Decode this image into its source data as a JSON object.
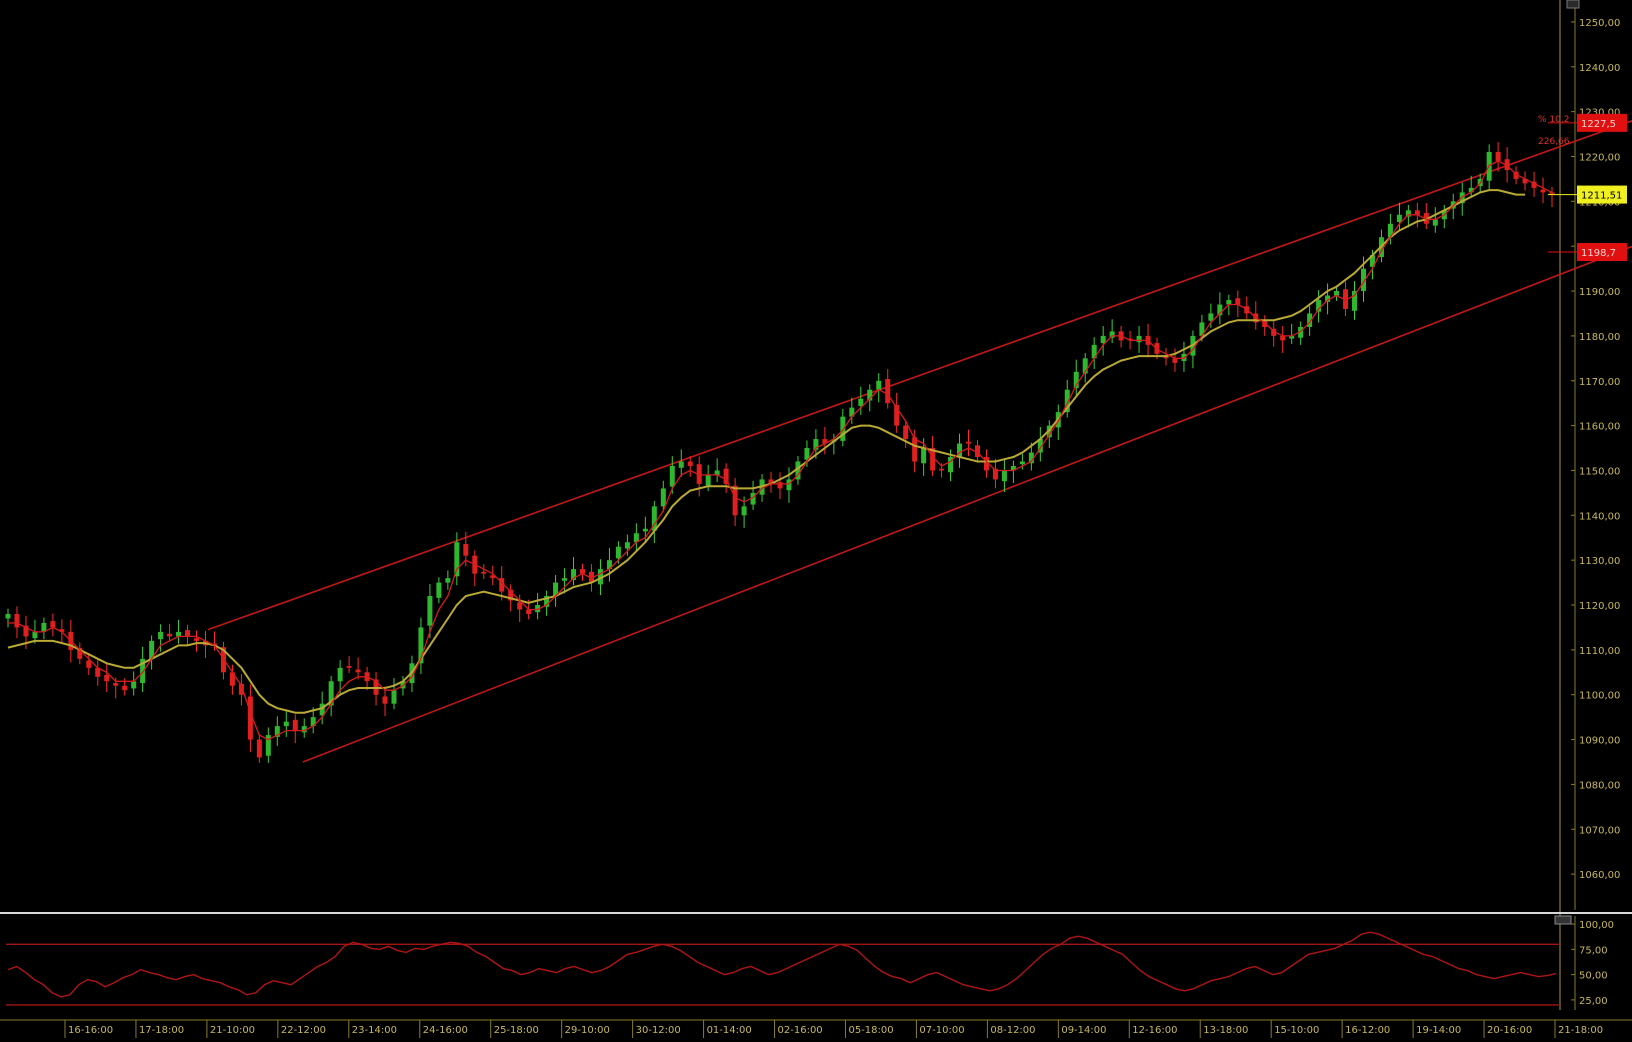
{
  "chart_data": [
    {
      "type": "candlestick",
      "title": "",
      "ylim": [
        1052,
        1254
      ],
      "yticks": [
        {
          "value": 1250,
          "label": "1250,00"
        },
        {
          "value": 1240,
          "label": "1240,00"
        },
        {
          "value": 1230,
          "label": "1230,00"
        },
        {
          "value": 1220,
          "label": "1220,00"
        },
        {
          "value": 1210,
          "label": "1210,00"
        },
        {
          "value": 1200,
          "label": "1200,00"
        },
        {
          "value": 1190,
          "label": "1190,00"
        },
        {
          "value": 1180,
          "label": "1180,00"
        },
        {
          "value": 1170,
          "label": "1170,00"
        },
        {
          "value": 1160,
          "label": "1160,00"
        },
        {
          "value": 1150,
          "label": "1150,00"
        },
        {
          "value": 1140,
          "label": "1140,00"
        },
        {
          "value": 1130,
          "label": "1130,00"
        },
        {
          "value": 1120,
          "label": "1120,00"
        },
        {
          "value": 1110,
          "label": "1110,00"
        },
        {
          "value": 1100,
          "label": "1100,00"
        },
        {
          "value": 1090,
          "label": "1090,00"
        },
        {
          "value": 1080,
          "label": "1080,00"
        },
        {
          "value": 1070,
          "label": "1070,00"
        },
        {
          "value": 1060,
          "label": "1060,00"
        }
      ],
      "price_labels": [
        {
          "value": 1227.5,
          "label": "1227,5",
          "color": "#e01010",
          "text_color": "#ffd0d0"
        },
        {
          "value": 1211.51,
          "label": "1211,51",
          "color": "#f0f020",
          "text_color": "#000000"
        },
        {
          "value": 1198.7,
          "label": "1198,7",
          "color": "#e01010",
          "text_color": "#ffd0d0"
        }
      ],
      "channel_annotations": [
        "% 10,2",
        "226,66"
      ],
      "channel": {
        "upper": {
          "start": {
            "i": 0,
            "v": 1114.5
          },
          "end": {
            "i": 181,
            "v": 1228.0
          }
        },
        "lower": {
          "start": {
            "i": 5,
            "v": 1085.0
          },
          "end": {
            "i": 181,
            "v": 1200.0
          }
        }
      },
      "candle_closes": [
        1118,
        1115,
        1113,
        1114,
        1116,
        1115,
        1114,
        1110,
        1108,
        1106,
        1104,
        1103,
        1102,
        1101,
        1103,
        1108,
        1112,
        1114,
        1113,
        1114,
        1113,
        1112,
        1111,
        1111,
        1105,
        1102,
        1100,
        1090,
        1086,
        1091,
        1093,
        1094,
        1092,
        1093,
        1095,
        1098,
        1103,
        1106,
        1106,
        1105,
        1103,
        1100,
        1098,
        1101,
        1103,
        1107,
        1115,
        1122,
        1125,
        1126,
        1134,
        1131,
        1127,
        1127,
        1126,
        1123,
        1121,
        1119,
        1118,
        1120,
        1122,
        1125,
        1126,
        1128,
        1127,
        1125,
        1128,
        1130,
        1133,
        1134,
        1136,
        1137,
        1142,
        1146,
        1151,
        1152,
        1151,
        1147,
        1149,
        1150,
        1147,
        1140,
        1142,
        1145,
        1148,
        1147,
        1146,
        1148,
        1152,
        1155,
        1157,
        1156,
        1157,
        1162,
        1164,
        1166,
        1168,
        1170,
        1165,
        1160,
        1157,
        1152,
        1155,
        1150,
        1150,
        1153,
        1156,
        1156,
        1153,
        1150,
        1148,
        1150,
        1151,
        1152,
        1154,
        1157,
        1160,
        1163,
        1168,
        1172,
        1175,
        1178,
        1180,
        1181,
        1179,
        1179,
        1180,
        1178,
        1176,
        1175,
        1174,
        1176,
        1180,
        1183,
        1185,
        1187,
        1188,
        1187,
        1185,
        1183,
        1182,
        1180,
        1179,
        1180,
        1182,
        1185,
        1188,
        1189,
        1190,
        1186,
        1190,
        1195,
        1198,
        1202,
        1205,
        1207,
        1208,
        1207,
        1205,
        1206,
        1208,
        1210,
        1212,
        1213,
        1215,
        1221,
        1219,
        1217,
        1215,
        1214,
        1213,
        1212,
        1211.5
      ],
      "ma_fast_values": [
        1116,
        1116,
        1115,
        1114,
        1114,
        1115,
        1114,
        1112,
        1110,
        1108,
        1106,
        1105,
        1103,
        1103,
        1103,
        1105,
        1108,
        1111,
        1112,
        1113,
        1113,
        1113,
        1112,
        1111,
        1108,
        1105,
        1102,
        1096,
        1091,
        1090,
        1091,
        1092,
        1092,
        1092,
        1093,
        1095,
        1098,
        1101,
        1103,
        1104,
        1104,
        1103,
        1101,
        1101,
        1102,
        1104,
        1108,
        1114,
        1119,
        1122,
        1128,
        1130,
        1129,
        1128,
        1127,
        1125,
        1123,
        1121,
        1119,
        1119,
        1120,
        1122,
        1124,
        1126,
        1127,
        1126,
        1127,
        1128,
        1130,
        1132,
        1134,
        1135,
        1138,
        1141,
        1146,
        1149,
        1150,
        1149,
        1149,
        1149,
        1148,
        1144,
        1143,
        1144,
        1146,
        1147,
        1147,
        1147,
        1149,
        1152,
        1155,
        1156,
        1157,
        1159,
        1162,
        1164,
        1166,
        1168,
        1167,
        1164,
        1161,
        1157,
        1156,
        1153,
        1151,
        1152,
        1154,
        1155,
        1154,
        1152,
        1150,
        1150,
        1150,
        1151,
        1152,
        1155,
        1158,
        1161,
        1165,
        1169,
        1172,
        1175,
        1178,
        1180,
        1180,
        1179,
        1179,
        1179,
        1177,
        1176,
        1175,
        1175,
        1177,
        1180,
        1183,
        1185,
        1187,
        1187,
        1186,
        1184,
        1183,
        1181,
        1180,
        1180,
        1181,
        1183,
        1186,
        1188,
        1189,
        1188,
        1189,
        1192,
        1195,
        1199,
        1202,
        1205,
        1207,
        1207,
        1206,
        1206,
        1207,
        1209,
        1211,
        1212,
        1214,
        1218,
        1219,
        1218,
        1216,
        1215,
        1214,
        1213,
        1212
      ],
      "ma_slow_values": [
        1110.5,
        1111,
        1111.5,
        1112,
        1112,
        1112,
        1111.5,
        1111,
        1110,
        1109,
        1108,
        1107,
        1106.5,
        1106,
        1106,
        1107,
        1108,
        1109,
        1110,
        1111,
        1111,
        1111.5,
        1111.5,
        1111,
        1110,
        1108,
        1106,
        1103,
        1100,
        1098,
        1097,
        1096.5,
        1096,
        1096,
        1096.5,
        1097,
        1098.5,
        1100,
        1101,
        1101.5,
        1101.5,
        1101.5,
        1101.5,
        1102,
        1103,
        1105,
        1108,
        1111,
        1114,
        1117,
        1120,
        1122,
        1122.5,
        1123,
        1122.5,
        1122,
        1121.5,
        1121,
        1120.5,
        1121,
        1121.5,
        1122,
        1123,
        1124,
        1124.5,
        1125,
        1126,
        1127,
        1128.5,
        1130,
        1132,
        1134,
        1136.5,
        1139,
        1142,
        1144,
        1145.5,
        1146,
        1146.5,
        1146.5,
        1146.5,
        1146,
        1146,
        1146,
        1146.5,
        1147,
        1148,
        1149,
        1150.5,
        1152,
        1153.5,
        1155,
        1156.5,
        1158,
        1159.5,
        1160,
        1160,
        1159.5,
        1158.5,
        1157.5,
        1156.5,
        1155.5,
        1155,
        1154.5,
        1154,
        1153.5,
        1153,
        1152.5,
        1152,
        1152,
        1152,
        1152.5,
        1153,
        1154,
        1155.5,
        1157,
        1159,
        1161.5,
        1164,
        1166.5,
        1169,
        1171,
        1172.5,
        1173.5,
        1174.5,
        1175,
        1175.5,
        1175.5,
        1175.5,
        1175.5,
        1176,
        1177,
        1178,
        1179.5,
        1181,
        1182,
        1183,
        1183.5,
        1183.5,
        1183.5,
        1183.5,
        1183.5,
        1184,
        1184.5,
        1185.5,
        1187,
        1188.5,
        1190,
        1191,
        1192.5,
        1194,
        1196,
        1198,
        1200,
        1202,
        1203.5,
        1204.5,
        1205.5,
        1206,
        1207,
        1208,
        1209,
        1210,
        1211,
        1212,
        1212.5,
        1212.5,
        1212,
        1211.5,
        1211.5
      ]
    },
    {
      "type": "line",
      "title": "",
      "ylim": [
        15,
        108
      ],
      "yticks": [
        {
          "value": 100,
          "label": "100,00"
        },
        {
          "value": 75,
          "label": "75,00"
        },
        {
          "value": 50,
          "label": "50,00"
        },
        {
          "value": 25,
          "label": "25,00"
        }
      ],
      "reference_lines": [
        80,
        20
      ],
      "series": [
        {
          "values": [
            55,
            58,
            52,
            45,
            40,
            32,
            28,
            30,
            40,
            45,
            43,
            38,
            42,
            47,
            50,
            55,
            52,
            50,
            47,
            45,
            48,
            50,
            46,
            44,
            42,
            38,
            35,
            30,
            32,
            40,
            44,
            42,
            40,
            46,
            52,
            58,
            62,
            68,
            78,
            82,
            80,
            76,
            75,
            78,
            74,
            72,
            76,
            75,
            78,
            80,
            82,
            81,
            78,
            72,
            68,
            62,
            56,
            54,
            50,
            52,
            56,
            54,
            52,
            56,
            58,
            55,
            52,
            54,
            58,
            64,
            70,
            72,
            75,
            78,
            80,
            78,
            74,
            68,
            62,
            58,
            54,
            50,
            52,
            56,
            58,
            54,
            50,
            52,
            56,
            60,
            64,
            68,
            72,
            76,
            80,
            78,
            74,
            66,
            58,
            52,
            48,
            46,
            42,
            46,
            50,
            52,
            48,
            44,
            40,
            38,
            36,
            34,
            36,
            40,
            46,
            54,
            62,
            70,
            76,
            80,
            86,
            88,
            86,
            82,
            78,
            74,
            70,
            62,
            54,
            48,
            44,
            40,
            36,
            34,
            36,
            40,
            44,
            46,
            48,
            52,
            56,
            58,
            54,
            50,
            52,
            58,
            64,
            70,
            72,
            74,
            76,
            80,
            84,
            90,
            92,
            90,
            86,
            82,
            78,
            74,
            70,
            68,
            64,
            60,
            56,
            54,
            50,
            48,
            46,
            48,
            50,
            52,
            50,
            48,
            49,
            51
          ]
        }
      ]
    }
  ],
  "x_axis_labels": [
    "16-16:00",
    "17-18:00",
    "21-10:00",
    "22-12:00",
    "23-14:00",
    "24-16:00",
    "25-18:00",
    "29-10:00",
    "30-12:00",
    "01-14:00",
    "02-16:00",
    "05-18:00",
    "07-10:00",
    "08-12:00",
    "09-14:00",
    "12-16:00",
    "13-18:00",
    "15-10:00",
    "16-12:00",
    "19-14:00",
    "20-16:00",
    "21-18:00"
  ],
  "colors": {
    "background": "#000000",
    "up_candle": "#2fb82f",
    "down_candle": "#e02020",
    "wick_up": "#3cd23c",
    "wick_down": "#ff2a2a",
    "channel": "#c01818",
    "ma_fast": "#d81c1c",
    "ma_slow": "#b9a935",
    "grid_axis": "#8a7d28",
    "axis_text": "#c8b85a",
    "divider": "#d8d8d8",
    "oscillator": "#b01515",
    "osc_ref": "#a01414",
    "date_text": "#c8b85a",
    "annotation": "#e03030"
  }
}
